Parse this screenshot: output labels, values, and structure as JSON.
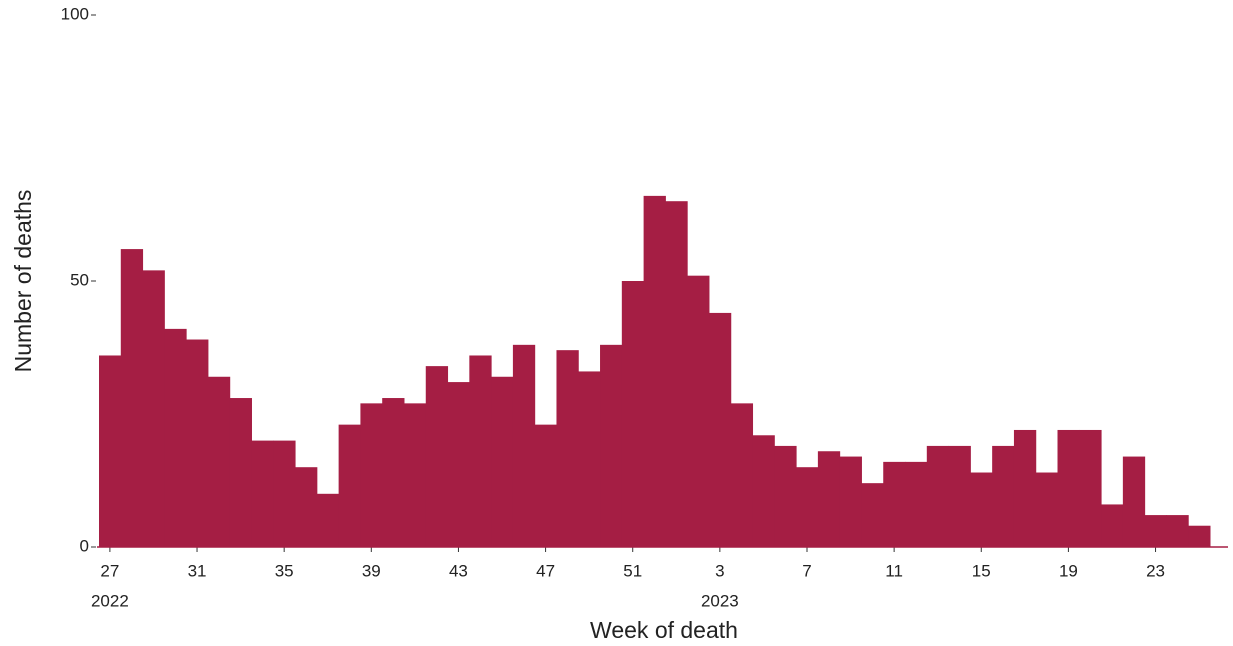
{
  "chart_data": {
    "type": "bar",
    "x_label": "Week of death",
    "y_label": "Number of deaths",
    "color": "#a51e44",
    "categories": [
      "27",
      null,
      null,
      null,
      "31",
      null,
      null,
      null,
      "35",
      null,
      null,
      null,
      "39",
      null,
      null,
      null,
      "43",
      null,
      null,
      null,
      "47",
      null,
      null,
      null,
      "51",
      null,
      null,
      null,
      "3",
      null,
      null,
      null,
      "7",
      null,
      null,
      null,
      "11",
      null,
      null,
      null,
      "15",
      null,
      null,
      null,
      "19",
      null,
      null,
      null,
      "23",
      null,
      null
    ],
    "year_labels": [
      "2022",
      null,
      null,
      null,
      null,
      null,
      null,
      null,
      null,
      null,
      null,
      null,
      null,
      null,
      null,
      null,
      null,
      null,
      null,
      null,
      null,
      null,
      null,
      null,
      null,
      null,
      null,
      null,
      "2023",
      null,
      null,
      null,
      null,
      null,
      null,
      null,
      null,
      null,
      null,
      null,
      null,
      null,
      null,
      null,
      null,
      null,
      null,
      null,
      null,
      null,
      null
    ],
    "values": [
      36,
      56,
      52,
      41,
      39,
      32,
      28,
      20,
      20,
      15,
      10,
      23,
      27,
      28,
      27,
      34,
      31,
      36,
      32,
      38,
      23,
      37,
      33,
      38,
      50,
      66,
      65,
      51,
      44,
      27,
      21,
      19,
      15,
      18,
      17,
      12,
      16,
      16,
      19,
      19,
      14,
      19,
      22,
      14,
      22,
      22,
      8,
      17,
      6,
      6,
      4
    ],
    "ylim": [
      0,
      100
    ],
    "yticks": [
      0,
      50,
      100
    ]
  }
}
